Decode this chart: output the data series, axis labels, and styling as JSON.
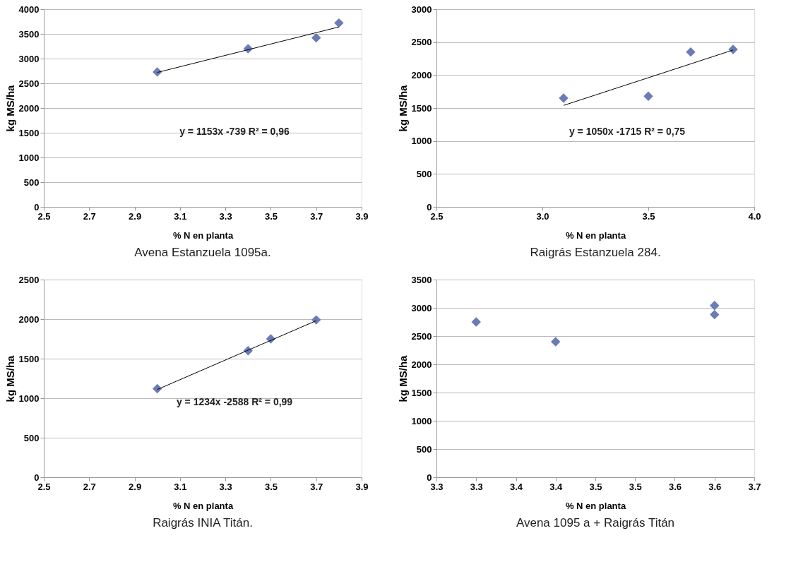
{
  "chart_data": [
    {
      "type": "scatter",
      "title": "Avena Estanzuela 1095a.",
      "xlabel": "% N en planta",
      "ylabel": "kg MS/ha",
      "xlim": [
        2.5,
        3.9
      ],
      "xticks": [
        2.5,
        2.7,
        2.9,
        3.1,
        3.3,
        3.5,
        3.7,
        3.9
      ],
      "ylim": [
        0,
        4000
      ],
      "yticks": [
        0,
        500,
        1000,
        1500,
        2000,
        2500,
        3000,
        3500,
        4000
      ],
      "grid": "y",
      "series": [
        {
          "type": "scatter",
          "marker": "diamond",
          "color": "#6a7bb5",
          "x": [
            3.0,
            3.4,
            3.7,
            3.8
          ],
          "values": [
            2730,
            3200,
            3420,
            3720
          ]
        },
        {
          "type": "line",
          "color": "#000000",
          "x": [
            3.0,
            3.8
          ],
          "values": [
            2720,
            3640
          ]
        }
      ],
      "annotations": [
        "y = 1153x -739   R² = 0,96"
      ]
    },
    {
      "type": "scatter",
      "title": "Raigrás Estanzuela 284.",
      "xlabel": "% N en planta",
      "ylabel": "kg MS/ha",
      "xlim": [
        2.5,
        4.0
      ],
      "xticks": [
        2.5,
        {
          "value": 3.0,
          "label": "3.0"
        },
        3.5,
        {
          "value": 4.0,
          "label": "4.0"
        }
      ],
      "ylim": [
        0,
        3000
      ],
      "yticks": [
        0,
        500,
        1000,
        1500,
        2000,
        2500,
        3000
      ],
      "grid": "y",
      "series": [
        {
          "type": "scatter",
          "marker": "diamond",
          "color": "#6a7bb5",
          "x": [
            3.1,
            3.5,
            3.7,
            3.9
          ],
          "values": [
            1650,
            1680,
            2350,
            2390
          ]
        },
        {
          "type": "line",
          "color": "#000000",
          "x": [
            3.1,
            3.9
          ],
          "values": [
            1540,
            2380
          ]
        }
      ],
      "annotations": [
        "y = 1050x -1715   R² = 0,75"
      ]
    },
    {
      "type": "scatter",
      "title": "Raigrás INIA Titán.",
      "xlabel": "% N en planta",
      "ylabel": "kg MS/ha",
      "xlim": [
        2.5,
        3.9
      ],
      "xticks": [
        2.5,
        2.7,
        2.9,
        3.1,
        3.3,
        3.5,
        3.7,
        3.9
      ],
      "ylim": [
        0,
        2500
      ],
      "yticks": [
        0,
        500,
        1000,
        1500,
        2000,
        2500
      ],
      "grid": "y",
      "series": [
        {
          "type": "scatter",
          "marker": "diamond",
          "color": "#6a7bb5",
          "x": [
            3.0,
            3.4,
            3.5,
            3.7
          ],
          "values": [
            1120,
            1600,
            1750,
            1990
          ]
        },
        {
          "type": "line",
          "color": "#000000",
          "x": [
            3.0,
            3.7
          ],
          "values": [
            1110,
            1980
          ]
        }
      ],
      "annotations": [
        "y = 1234x -2588   R² = 0,99"
      ]
    },
    {
      "type": "scatter",
      "title": "Avena 1095 a + Raigrás Titán",
      "xlabel": "% N en planta",
      "ylabel": "kg MS/ha",
      "xlim": [
        3.25,
        3.65
      ],
      "xticks": [
        {
          "value": 3.25,
          "label": "3.3"
        },
        {
          "value": 3.3,
          "label": "3.3"
        },
        {
          "value": 3.35,
          "label": "3.4"
        },
        {
          "value": 3.4,
          "label": "3.4"
        },
        {
          "value": 3.45,
          "label": "3.5"
        },
        {
          "value": 3.5,
          "label": "3.5"
        },
        {
          "value": 3.55,
          "label": "3.6"
        },
        {
          "value": 3.6,
          "label": "3.6"
        },
        {
          "value": 3.65,
          "label": "3.7"
        }
      ],
      "ylim": [
        0,
        3500
      ],
      "yticks": [
        0,
        500,
        1000,
        1500,
        2000,
        2500,
        3000,
        3500
      ],
      "grid": "y",
      "series": [
        {
          "type": "scatter",
          "marker": "diamond",
          "color": "#6a7bb5",
          "x": [
            3.3,
            3.4,
            3.6,
            3.6
          ],
          "values": [
            2750,
            2400,
            3040,
            2880
          ]
        }
      ]
    }
  ]
}
